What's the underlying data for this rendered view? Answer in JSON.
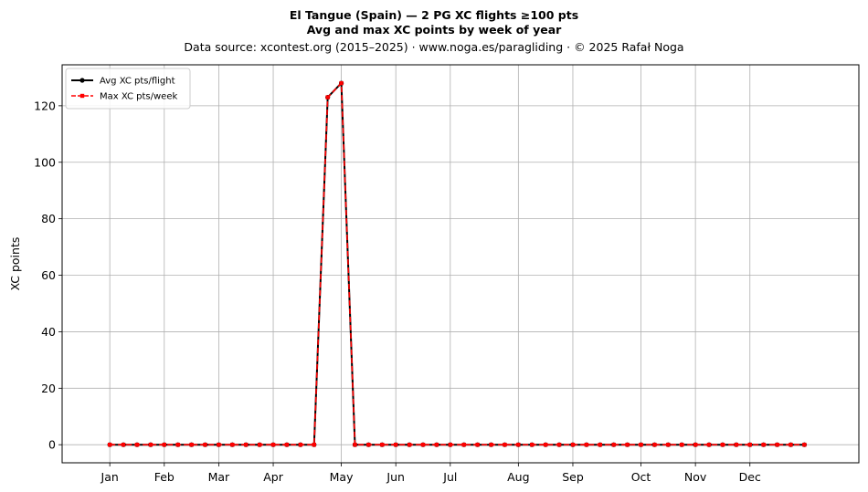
{
  "header": {
    "line1": "El Tangue (Spain)  —  2 PG XC flights ≥100 pts",
    "line2": "Avg and max XC points by week of year",
    "line3": "Data source: xcontest.org (2015–2025)  ·  www.noga.es/paragliding  ·  © 2025 Rafał Noga"
  },
  "chart_data": {
    "type": "line",
    "xlabel": "",
    "ylabel": "XC points",
    "xlim": [
      -2.5,
      56
    ],
    "ylim": [
      -6.4,
      134.5
    ],
    "yticks": [
      0,
      20,
      40,
      60,
      80,
      100,
      120
    ],
    "xticks": [
      {
        "label": "Jan",
        "week": 1
      },
      {
        "label": "Feb",
        "week": 5
      },
      {
        "label": "Mar",
        "week": 9
      },
      {
        "label": "Apr",
        "week": 13
      },
      {
        "label": "May",
        "week": 18
      },
      {
        "label": "Jun",
        "week": 22
      },
      {
        "label": "Jul",
        "week": 26
      },
      {
        "label": "Aug",
        "week": 31
      },
      {
        "label": "Sep",
        "week": 35
      },
      {
        "label": "Oct",
        "week": 40
      },
      {
        "label": "Nov",
        "week": 44
      },
      {
        "label": "Dec",
        "week": 48
      }
    ],
    "grid": true,
    "legend_position": "top-left",
    "x": [
      1,
      2,
      3,
      4,
      5,
      6,
      7,
      8,
      9,
      10,
      11,
      12,
      13,
      14,
      15,
      16,
      17,
      18,
      19,
      20,
      21,
      22,
      23,
      24,
      25,
      26,
      27,
      28,
      29,
      30,
      31,
      32,
      33,
      34,
      35,
      36,
      37,
      38,
      39,
      40,
      41,
      42,
      43,
      44,
      45,
      46,
      47,
      48,
      49,
      50,
      51,
      52
    ],
    "series": [
      {
        "name": "Avg XC pts/flight",
        "color": "#000000",
        "style": "solid",
        "marker": "circle",
        "values": [
          0,
          0,
          0,
          0,
          0,
          0,
          0,
          0,
          0,
          0,
          0,
          0,
          0,
          0,
          0,
          0,
          123,
          128,
          0,
          0,
          0,
          0,
          0,
          0,
          0,
          0,
          0,
          0,
          0,
          0,
          0,
          0,
          0,
          0,
          0,
          0,
          0,
          0,
          0,
          0,
          0,
          0,
          0,
          0,
          0,
          0,
          0,
          0,
          0,
          0,
          0,
          0
        ]
      },
      {
        "name": "Max XC pts/week",
        "color": "#ff0000",
        "style": "dashed",
        "marker": "square",
        "values": [
          0,
          0,
          0,
          0,
          0,
          0,
          0,
          0,
          0,
          0,
          0,
          0,
          0,
          0,
          0,
          0,
          123,
          128,
          0,
          0,
          0,
          0,
          0,
          0,
          0,
          0,
          0,
          0,
          0,
          0,
          0,
          0,
          0,
          0,
          0,
          0,
          0,
          0,
          0,
          0,
          0,
          0,
          0,
          0,
          0,
          0,
          0,
          0,
          0,
          0,
          0,
          0
        ]
      }
    ]
  }
}
